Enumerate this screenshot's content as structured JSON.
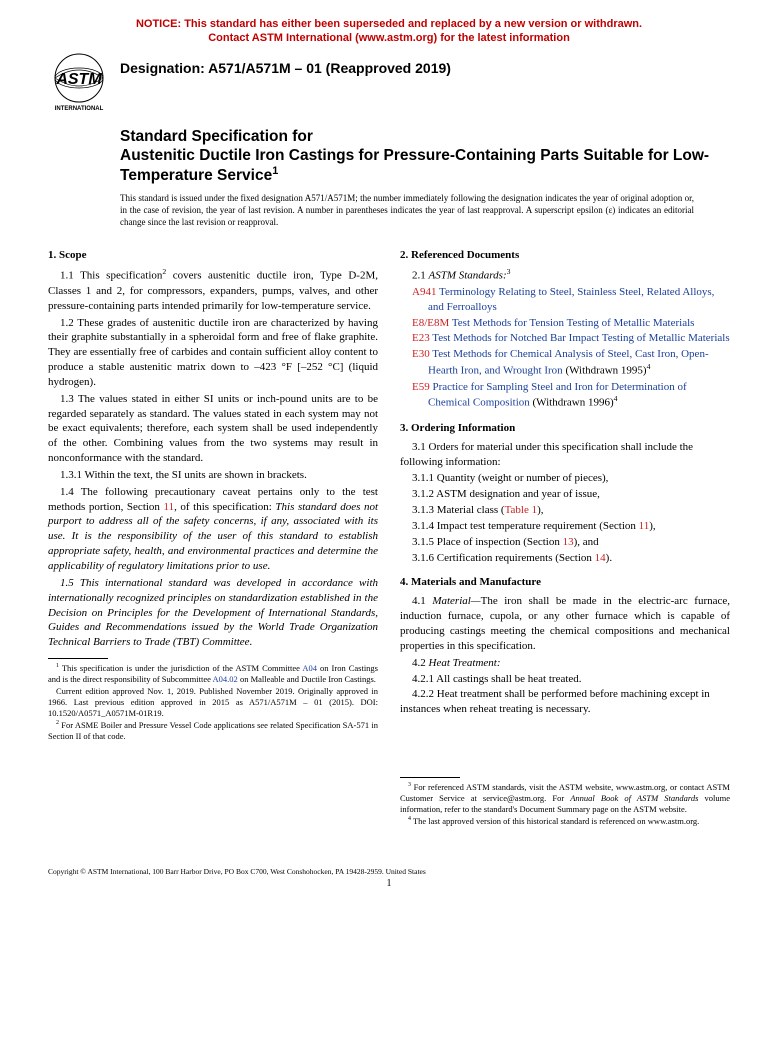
{
  "notice": {
    "line1": "NOTICE: This standard has either been superseded and replaced by a new version or withdrawn.",
    "line2": "Contact ASTM International (www.astm.org) for the latest information"
  },
  "logo": {
    "text_top": "INTERNATIONAL"
  },
  "designation": "Designation: A571/A571M – 01 (Reapproved 2019)",
  "title_prefix": "Standard Specification for",
  "title_main": "Austenitic Ductile Iron Castings for Pressure-Containing Parts Suitable for Low-Temperature Service",
  "title_sup": "1",
  "disclaimer": "This standard is issued under the fixed designation A571/A571M; the number immediately following the designation indicates the year of original adoption or, in the case of revision, the year of last revision. A number in parentheses indicates the year of last reapproval. A superscript epsilon (ε) indicates an editorial change since the last revision or reapproval.",
  "left_col": {
    "s1_head": "1. Scope",
    "s1_1_a": "1.1 This specification",
    "s1_1_sup": "2",
    "s1_1_b": " covers austenitic ductile iron, Type D-2M, Classes 1 and 2, for compressors, expanders, pumps, valves, and other pressure-containing parts intended primarily for low-temperature service.",
    "s1_2": "1.2 These grades of austenitic ductile iron are characterized by having their graphite substantially in a spheroidal form and free of flake graphite. They are essentially free of carbides and contain sufficient alloy content to produce a stable austenitic matrix down to –423 °F [–252 °C] (liquid hydrogen).",
    "s1_3": "1.3 The values stated in either SI units or inch-pound units are to be regarded separately as standard. The values stated in each system may not be exact equivalents; therefore, each system shall be used independently of the other. Combining values from the two systems may result in nonconformance with the standard.",
    "s1_3_1": "1.3.1 Within the text, the SI units are shown in brackets.",
    "s1_4_a": "1.4 The following precautionary caveat pertains only to the test methods portion, Section ",
    "s1_4_ref": "11",
    "s1_4_b": ", of this specification: ",
    "s1_4_ital": "This standard does not purport to address all of the safety concerns, if any, associated with its use. It is the responsibility of the user of this standard to establish appropriate safety, health, and environmental practices and determine the applicability of regulatory limitations prior to use.",
    "s1_5": "1.5 This international standard was developed in accordance with internationally recognized principles on standardization established in the Decision on Principles for the Development of International Standards, Guides and Recommendations issued by the World Trade Organization Technical Barriers to Trade (TBT) Committee.",
    "fn1_a": " This specification is under the jurisdiction of the ASTM Committee ",
    "fn1_ref1": "A04",
    "fn1_b": " on Iron Castings and is the direct responsibility of Subcommittee ",
    "fn1_ref2": "A04.02",
    "fn1_c": " on Malleable and Ductile Iron Castings.",
    "fn1_para2": "Current edition approved Nov. 1, 2019. Published November 2019. Originally approved in 1966. Last previous edition approved in 2015 as A571/A571M – 01 (2015). DOI: 10.1520/A0571_A0571M-01R19.",
    "fn2": " For ASME Boiler and Pressure Vessel Code applications see related Specification SA-571 in Section II of that code."
  },
  "right_col": {
    "s2_head": "2. Referenced Documents",
    "s2_1_a": "2.1 ",
    "s2_1_ital": "ASTM Standards:",
    "s2_1_sup": "3",
    "refs": [
      {
        "code": "A941",
        "title": " Terminology Relating to Steel, Stainless Steel, Related Alloys, and Ferroalloys",
        "suffix": ""
      },
      {
        "code": "E8/E8M",
        "title": " Test Methods for Tension Testing of Metallic Materials",
        "suffix": ""
      },
      {
        "code": "E23",
        "title": " Test Methods for Notched Bar Impact Testing of Metallic Materials",
        "suffix": ""
      },
      {
        "code": "E30",
        "title": " Test Methods for Chemical Analysis of Steel, Cast Iron, Open-Hearth Iron, and Wrought Iron",
        "suffix": " (Withdrawn 1995)",
        "sup": "4"
      },
      {
        "code": "E59",
        "title": " Practice for Sampling Steel and Iron for Determination of Chemical Composition",
        "suffix": " (Withdrawn 1996)",
        "sup": "4"
      }
    ],
    "s3_head": "3. Ordering Information",
    "s3_1": "3.1 Orders for material under this specification shall include the following information:",
    "s3_1_1": "3.1.1 Quantity (weight or number of pieces),",
    "s3_1_2": "3.1.2 ASTM designation and year of issue,",
    "s3_1_3_a": "3.1.3 Material class (",
    "s3_1_3_ref": "Table 1",
    "s3_1_3_b": "),",
    "s3_1_4_a": "3.1.4 Impact test temperature requirement (Section ",
    "s3_1_4_ref": "11",
    "s3_1_4_b": "),",
    "s3_1_5_a": "3.1.5 Place of inspection (Section ",
    "s3_1_5_ref": "13",
    "s3_1_5_b": "), and",
    "s3_1_6_a": "3.1.6 Certification requirements (Section ",
    "s3_1_6_ref": "14",
    "s3_1_6_b": ").",
    "s4_head": "4. Materials and Manufacture",
    "s4_1_a": "4.1 ",
    "s4_1_ital": "Material—",
    "s4_1_b": "The iron shall be made in the electric-arc furnace, induction furnace, cupola, or any other furnace which is capable of producing castings meeting the chemical compositions and mechanical properties in this specification.",
    "s4_2_a": "4.2 ",
    "s4_2_ital": "Heat Treatment:",
    "s4_2_1": "4.2.1 All castings shall be heat treated.",
    "s4_2_2": "4.2.2 Heat treatment shall be performed before machining except in instances when reheat treating is necessary.",
    "fn3_a": " For referenced ASTM standards, visit the ASTM website, www.astm.org, or contact ASTM Customer Service at service@astm.org. For ",
    "fn3_ital": "Annual Book of ASTM Standards",
    "fn3_b": " volume information, refer to the standard's Document Summary page on the ASTM website.",
    "fn4": " The last approved version of this historical standard is referenced on www.astm.org."
  },
  "copyright": "Copyright © ASTM International, 100 Barr Harbor Drive, PO Box C700, West Conshohocken, PA 19428-2959. United States",
  "pagenum": "1"
}
